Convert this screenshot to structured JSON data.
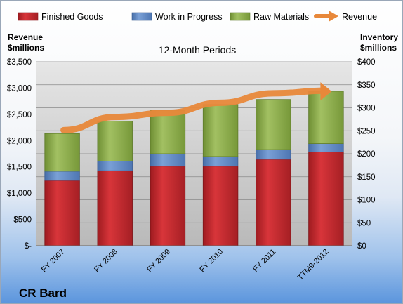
{
  "chart_data": {
    "type": "bar",
    "title": "12-Month Periods",
    "company_label": "CR Bard",
    "y_left_label": [
      "Revenue",
      "$millions"
    ],
    "y_right_label": [
      "Inventory",
      "$millions"
    ],
    "categories": [
      "FY 2007",
      "FY 2008",
      "FY 2009",
      "FY 2010",
      "FY 2011",
      "TTM9-2012"
    ],
    "series": [
      {
        "name": "Finished Goods",
        "axis": "right",
        "kind": "stacked-bar",
        "color": "#c0272d",
        "values": [
          142,
          163,
          173,
          173,
          188,
          204
        ]
      },
      {
        "name": "Work in Progress",
        "axis": "right",
        "kind": "stacked-bar",
        "color": "#5b85c4",
        "values": [
          20,
          21,
          27,
          21,
          21,
          18
        ]
      },
      {
        "name": "Raw Materials",
        "axis": "right",
        "kind": "stacked-bar",
        "color": "#8aab4d",
        "values": [
          82,
          87,
          94,
          113,
          109,
          114
        ]
      },
      {
        "name": "Revenue",
        "axis": "left",
        "kind": "line",
        "color": "#e8883a",
        "values": [
          2200,
          2450,
          2530,
          2720,
          2900,
          2950
        ]
      }
    ],
    "y_left": {
      "ylim": [
        0,
        3500
      ],
      "ticks": [
        0,
        500,
        1000,
        1500,
        2000,
        2500,
        3000,
        3500
      ],
      "tick_labels": [
        "$-",
        "$500",
        "$1,000",
        "$1,500",
        "$2,000",
        "$2,500",
        "$3,000",
        "$3,500"
      ]
    },
    "y_right": {
      "ylim": [
        0,
        400
      ],
      "ticks": [
        0,
        50,
        100,
        150,
        200,
        250,
        300,
        350,
        400
      ],
      "tick_labels": [
        "$0",
        "$50",
        "$100",
        "$150",
        "$200",
        "$250",
        "$300",
        "$350",
        "$400"
      ]
    },
    "legend_position": "top",
    "grid": true
  }
}
